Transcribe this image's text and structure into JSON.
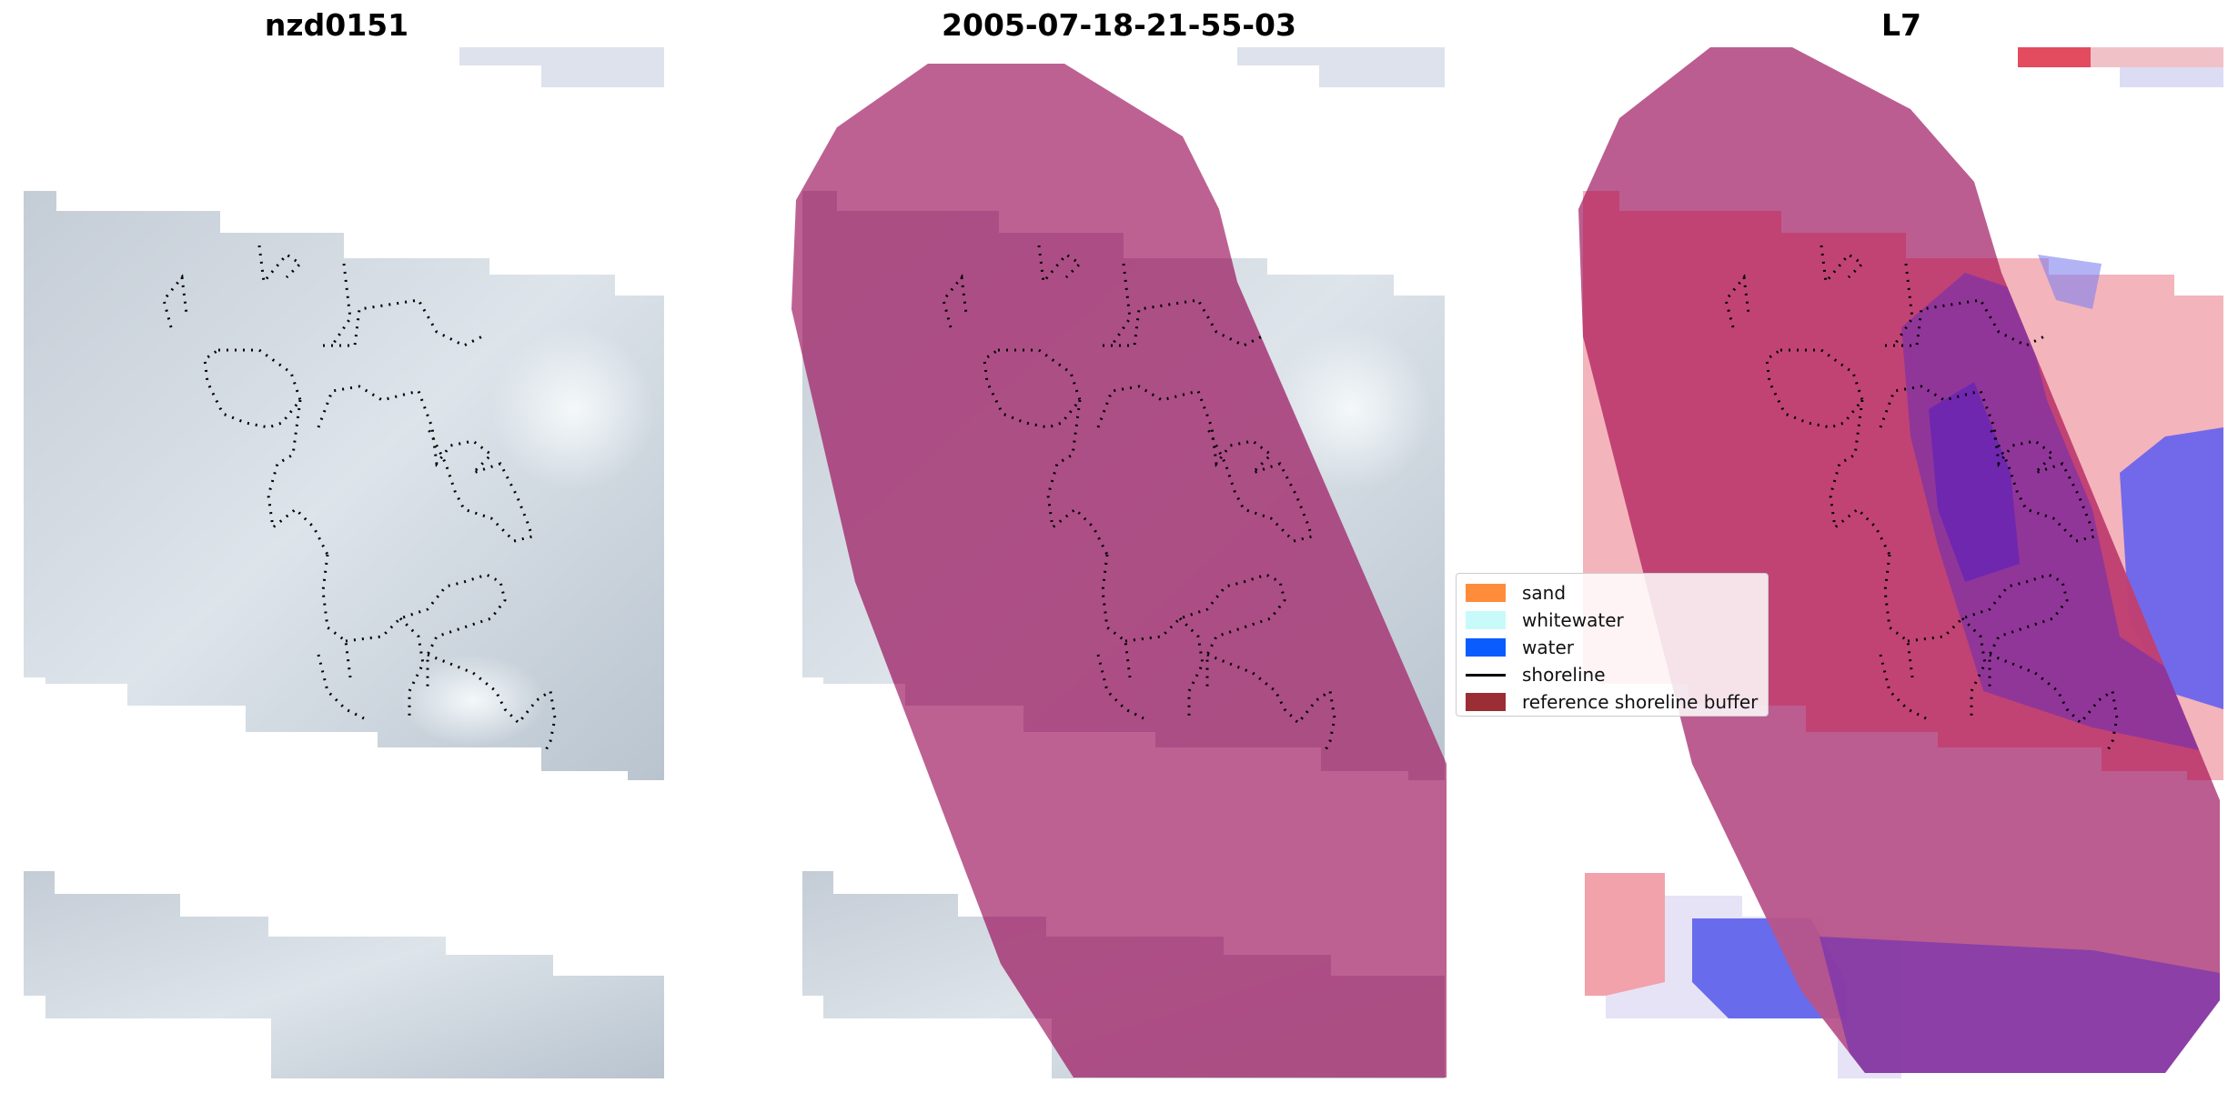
{
  "panels": [
    {
      "title": "nzd0151"
    },
    {
      "title": "2005-07-18-21-55-03"
    },
    {
      "title": "L7"
    }
  ],
  "legend": {
    "items": [
      {
        "label": "sand",
        "kind": "patch",
        "color": "#ff8c3a"
      },
      {
        "label": "whitewater",
        "kind": "patch",
        "color": "#c8fafa"
      },
      {
        "label": "water",
        "kind": "patch",
        "color": "#0a5cff"
      },
      {
        "label": "shoreline",
        "kind": "line",
        "color": "#000000"
      },
      {
        "label": "reference shoreline buffer",
        "kind": "patch",
        "color": "#9b2d35"
      }
    ]
  },
  "colors": {
    "buffer": "#b7548a",
    "imagery": "#c7d0da",
    "shoreline": "#000000",
    "index_positive": "#d9354f",
    "index_negative": "#2a3cf0"
  }
}
